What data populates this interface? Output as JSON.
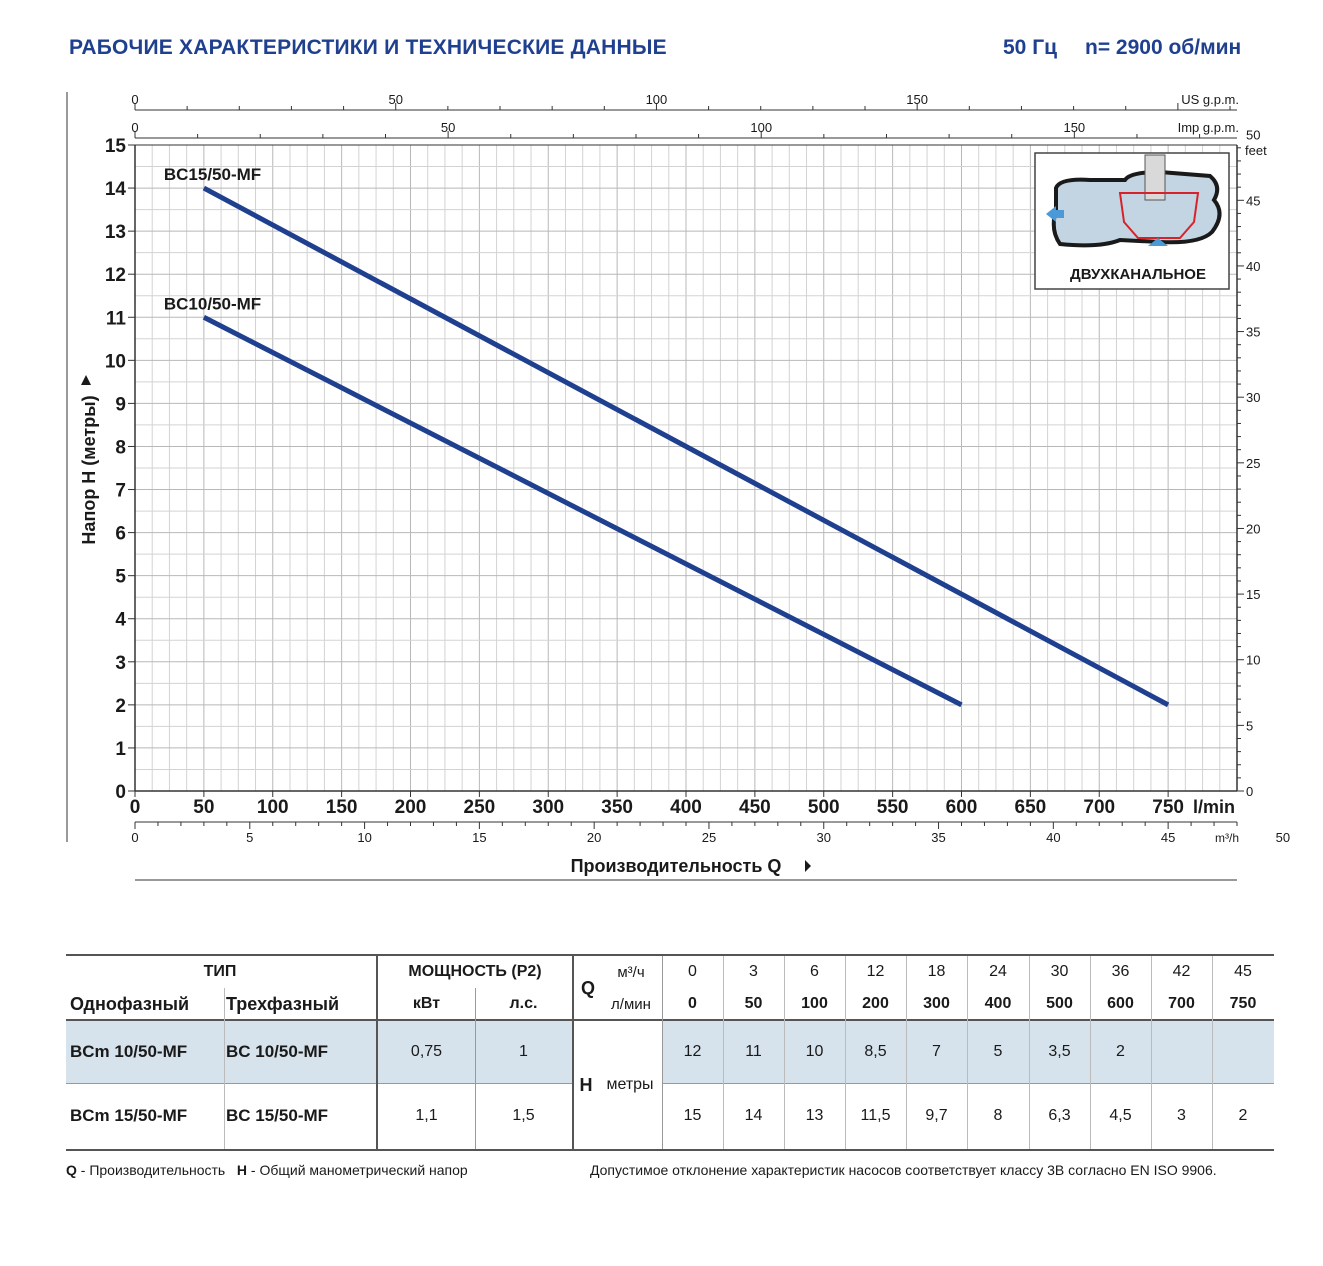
{
  "header": {
    "title": "РАБОЧИЕ ХАРАКТЕРИСТИКИ И ТЕХНИЧЕСКИЕ ДАННЫЕ",
    "frequency": "50 Гц",
    "speed": "n= 2900 об/мин"
  },
  "chart_data": {
    "type": "line",
    "title": "",
    "xlabel": "Производительность Q",
    "ylabel": "Напор H (метры)",
    "x_unit": "l/min",
    "xlim": [
      0,
      800
    ],
    "ylim": [
      0,
      15
    ],
    "grid": true,
    "x_ticks": [
      "0",
      "50",
      "100",
      "150",
      "200",
      "250",
      "300",
      "350",
      "400",
      "450",
      "500",
      "550",
      "600",
      "650",
      "700",
      "750"
    ],
    "y_ticks": [
      "0",
      "1",
      "2",
      "3",
      "4",
      "5",
      "6",
      "7",
      "8",
      "9",
      "10",
      "11",
      "12",
      "13",
      "14",
      "15"
    ],
    "us_gpm_ticks": [
      "0",
      "50",
      "100",
      "150"
    ],
    "us_gpm_unit": "US g.p.m.",
    "imp_gpm_ticks": [
      "0",
      "50",
      "100",
      "150"
    ],
    "imp_gpm_unit": "Imp g.p.m.",
    "m3h_ticks": [
      "0",
      "5",
      "10",
      "15",
      "20",
      "25",
      "30",
      "35",
      "40",
      "45",
      "50"
    ],
    "m3h_unit": "m³/h",
    "feet_ticks": [
      "0",
      "5",
      "10",
      "15",
      "20",
      "25",
      "30",
      "35",
      "40",
      "45",
      "50"
    ],
    "feet_unit": "feet",
    "series": [
      {
        "name": "BC15/50-MF",
        "x": [
          50,
          750
        ],
        "y": [
          14,
          2
        ]
      },
      {
        "name": "BC10/50-MF",
        "x": [
          50,
          600
        ],
        "y": [
          11,
          2
        ]
      }
    ],
    "line_color": "#1f3f8f",
    "inset_label": "ДВУХКАНАЛЬНОЕ"
  },
  "table": {
    "type_header": "ТИП",
    "single_phase": "Однофазный",
    "three_phase": "Трехфазный",
    "power_header": "МОЩНОСТЬ (P2)",
    "kw": "кВт",
    "hp": "л.с.",
    "q_label": "Q",
    "m3h_label": "м³/ч",
    "lmin_label": "л/мин",
    "h_label": "H",
    "h_unit": "метры",
    "m3h": [
      "0",
      "3",
      "6",
      "12",
      "18",
      "24",
      "30",
      "36",
      "42",
      "45"
    ],
    "lmin": [
      "0",
      "50",
      "100",
      "200",
      "300",
      "400",
      "500",
      "600",
      "700",
      "750"
    ],
    "rows": [
      {
        "single": "BCm 10/50-MF",
        "three": "BC 10/50-MF",
        "kw": "0,75",
        "hp": "1",
        "h": [
          "12",
          "11",
          "10",
          "8,5",
          "7",
          "5",
          "3,5",
          "2",
          "",
          ""
        ]
      },
      {
        "single": "BCm 15/50-MF",
        "three": "BC 15/50-MF",
        "kw": "1,1",
        "hp": "1,5",
        "h": [
          "15",
          "14",
          "13",
          "11,5",
          "9,7",
          "8",
          "6,3",
          "4,5",
          "3",
          "2"
        ]
      }
    ],
    "row_highlight_color": "#d7e3ec"
  },
  "footer": {
    "q_key": "Q",
    "q_text": " - Производительность",
    "h_key": "H",
    "h_text": " - Общий манометрический напор",
    "note": "Допустимое отклонение характеристик насосов соответствует классу 3В согласно EN ISO 9906."
  }
}
